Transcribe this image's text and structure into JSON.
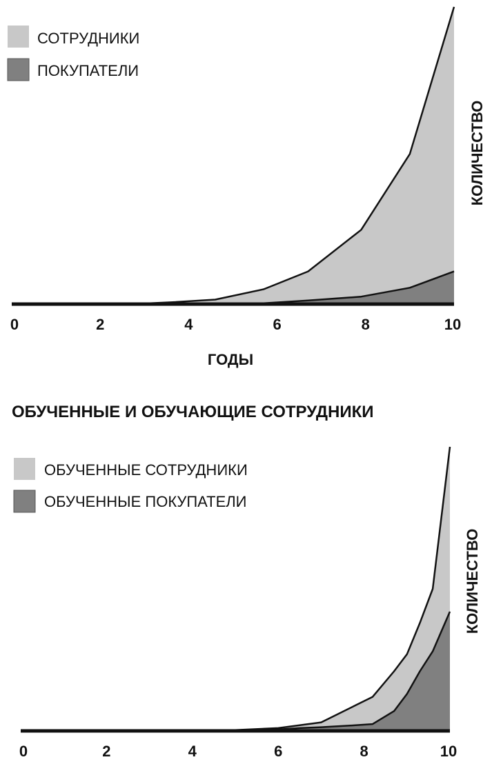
{
  "chart_data": [
    {
      "type": "area",
      "title": "",
      "xlabel": "ГОДЫ",
      "ylabel": "КОЛИЧЕСТВО",
      "x": [
        0,
        1,
        2,
        3,
        3.6,
        4.6,
        5.7,
        6.7,
        7.9,
        9,
        10
      ],
      "xlim": [
        0,
        10
      ],
      "ylim": [
        0,
        100
      ],
      "xticks": [
        "0",
        "2",
        "4",
        "6",
        "8",
        "10"
      ],
      "series": [
        {
          "name": "СОТРУДНИКИ",
          "color": "#c8c8c8",
          "values": [
            0,
            0,
            0,
            0.2,
            0.6,
            1.5,
            5,
            11,
            25,
            50.5,
            100
          ]
        },
        {
          "name": "ПОКУПАТЕЛИ",
          "color": "#808080",
          "values": [
            0,
            0,
            0,
            0,
            0,
            0,
            0.3,
            1.2,
            2.5,
            5.5,
            11
          ]
        }
      ],
      "legend_position": "top-left",
      "grid": false
    },
    {
      "type": "area",
      "title": "ОБУЧЕННЫЕ И ОБУЧАЮЩИЕ СОТРУДНИКИ",
      "xlabel": "",
      "ylabel": "КОЛИЧЕСТВО",
      "x": [
        0,
        1,
        2,
        3,
        4,
        5,
        6,
        6.5,
        7,
        7.8,
        8.2,
        8.7,
        9,
        9.3,
        9.6,
        10
      ],
      "xlim": [
        0,
        10
      ],
      "ylim": [
        0,
        100
      ],
      "xticks": [
        "0",
        "2",
        "4",
        "6",
        "8",
        "10"
      ],
      "series": [
        {
          "name": "ОБУЧЕННЫЕ СОТРУДНИКИ",
          "color": "#c8c8c8",
          "values": [
            0,
            0,
            0,
            0,
            0,
            0.3,
            1,
            2,
            3,
            9,
            12,
            21,
            27,
            38,
            50,
            100
          ]
        },
        {
          "name": "ОБУЧЕННЫЕ ПОКУПАТЕЛИ",
          "color": "#808080",
          "values": [
            0,
            0,
            0,
            0,
            0,
            0,
            0.5,
            1,
            1.3,
            2,
            2.4,
            7,
            13,
            21,
            28,
            42
          ]
        }
      ],
      "legend_position": "top-left",
      "grid": false
    }
  ]
}
